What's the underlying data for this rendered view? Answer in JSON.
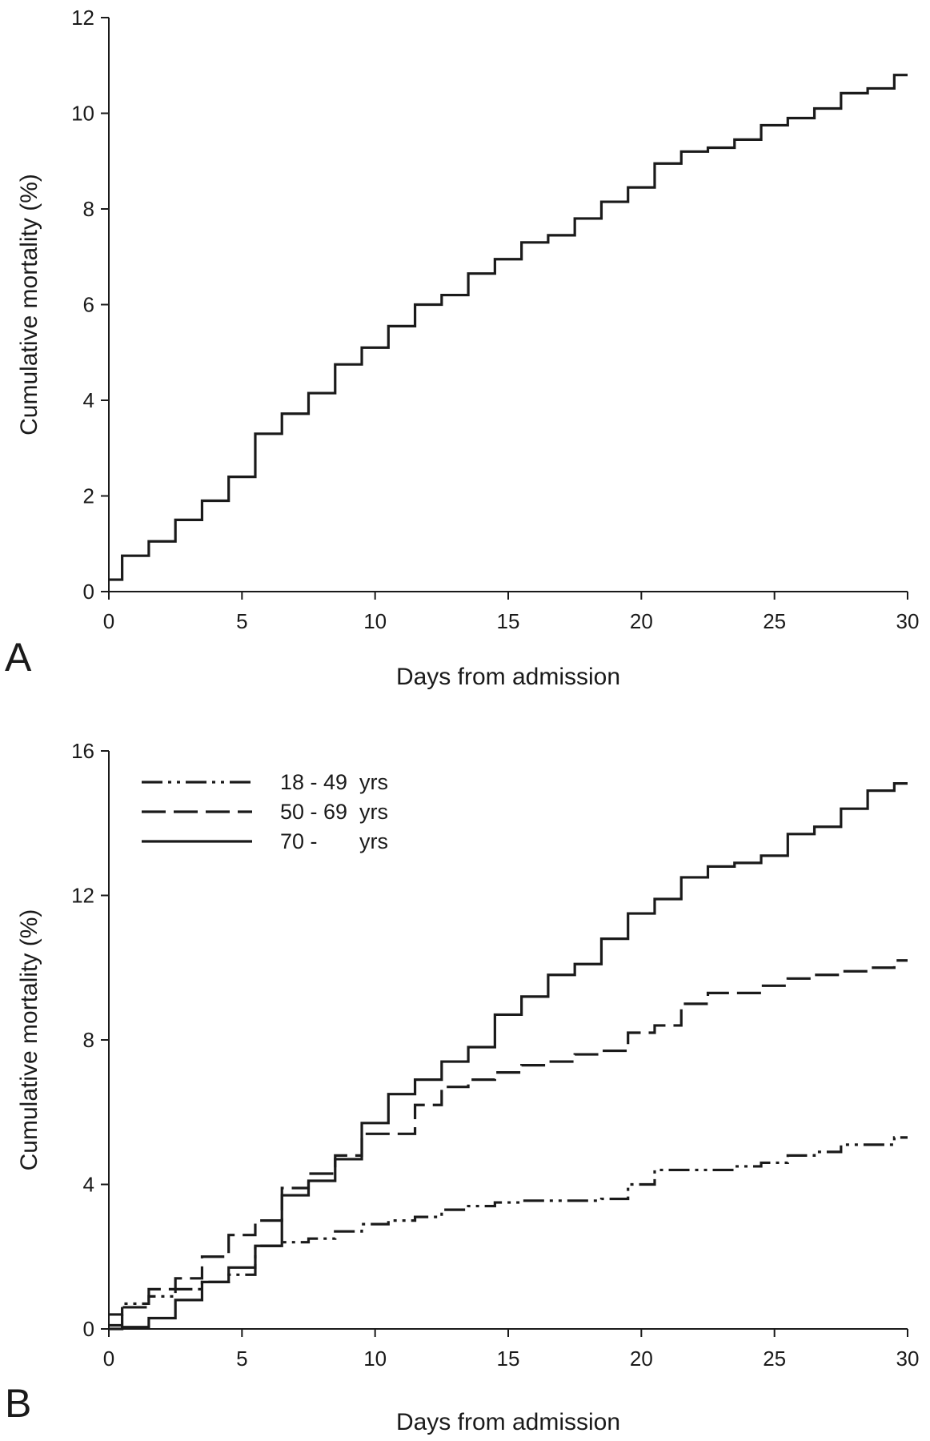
{
  "chart_data": [
    {
      "type": "line",
      "step": true,
      "panel_label": "A",
      "xlabel": "Days from admission",
      "ylabel": "Cumulative mortality (%)",
      "xlim": [
        0,
        30
      ],
      "ylim": [
        0,
        12
      ],
      "xticks": [
        0,
        5,
        10,
        15,
        20,
        25,
        30
      ],
      "yticks": [
        0,
        2,
        4,
        6,
        8,
        10,
        12
      ],
      "grid": false,
      "series": [
        {
          "style": "solid",
          "x": [
            0,
            0.5,
            1.5,
            2.5,
            3.5,
            4.5,
            5.5,
            6.5,
            7.5,
            8.5,
            9.5,
            10.5,
            11.5,
            12.5,
            13.5,
            14.5,
            15.5,
            16.5,
            17.5,
            18.5,
            19.5,
            20.5,
            21.5,
            22.5,
            23.5,
            24.5,
            25.5,
            26.5,
            27.5,
            28.5,
            29.5,
            30
          ],
          "y": [
            0.25,
            0.75,
            1.05,
            1.5,
            1.9,
            2.4,
            3.3,
            3.72,
            4.15,
            4.75,
            5.1,
            5.55,
            6.0,
            6.2,
            6.65,
            6.95,
            7.3,
            7.45,
            7.8,
            8.15,
            8.45,
            8.95,
            9.2,
            9.28,
            9.45,
            9.75,
            9.9,
            10.1,
            10.42,
            10.52,
            10.8,
            10.8
          ]
        }
      ]
    },
    {
      "type": "line",
      "step": true,
      "panel_label": "B",
      "xlabel": "Days from admission",
      "ylabel": "Cumulative mortality (%)",
      "xlim": [
        0,
        30
      ],
      "ylim": [
        0,
        16
      ],
      "xticks": [
        0,
        5,
        10,
        15,
        20,
        25,
        30
      ],
      "yticks": [
        0,
        4,
        8,
        12,
        16
      ],
      "grid": false,
      "legend_position": "top-left",
      "series": [
        {
          "name": "18 - 49  yrs",
          "style": "dash-dot-dot",
          "x": [
            0,
            0.5,
            1.5,
            2.5,
            3.5,
            4.5,
            5.5,
            6.5,
            7.5,
            8.5,
            9.5,
            10.5,
            11.5,
            12.5,
            13.5,
            14.5,
            15.5,
            16.5,
            17.5,
            18.5,
            19.5,
            20.5,
            21.5,
            22.5,
            23.5,
            24.5,
            25.5,
            26.5,
            27.5,
            28.5,
            29.5,
            30
          ],
          "y": [
            0.4,
            0.7,
            0.9,
            1.1,
            1.3,
            1.5,
            2.3,
            2.4,
            2.5,
            2.7,
            2.9,
            3.0,
            3.1,
            3.3,
            3.4,
            3.5,
            3.55,
            3.55,
            3.55,
            3.6,
            4.0,
            4.4,
            4.4,
            4.4,
            4.5,
            4.6,
            4.8,
            4.9,
            5.1,
            5.1,
            5.3,
            5.3
          ]
        },
        {
          "name": "50 - 69  yrs",
          "style": "dashed",
          "x": [
            0,
            0.5,
            1.5,
            2.5,
            3.5,
            4.5,
            5.5,
            6.5,
            7.5,
            8.5,
            9.5,
            10.5,
            11.5,
            12.5,
            13.5,
            14.5,
            15.5,
            16.5,
            17.5,
            18.5,
            19.5,
            20.5,
            21.5,
            22.5,
            23.5,
            24.5,
            25.5,
            26.5,
            27.5,
            28.5,
            29.5,
            30
          ],
          "y": [
            0.1,
            0.6,
            1.1,
            1.4,
            2.0,
            2.6,
            3.0,
            3.9,
            4.3,
            4.8,
            5.4,
            5.4,
            6.2,
            6.7,
            6.9,
            7.1,
            7.3,
            7.4,
            7.6,
            7.7,
            8.2,
            8.4,
            9.0,
            9.3,
            9.3,
            9.5,
            9.7,
            9.8,
            9.9,
            10.0,
            10.2,
            10.2
          ]
        },
        {
          "name": "70 -       yrs",
          "style": "solid",
          "x": [
            0,
            0.5,
            1.5,
            2.5,
            3.5,
            4.5,
            5.5,
            6.5,
            7.5,
            8.5,
            9.5,
            10.5,
            11.5,
            12.5,
            13.5,
            14.5,
            15.5,
            16.5,
            17.5,
            18.5,
            19.5,
            20.5,
            21.5,
            22.5,
            23.5,
            24.5,
            25.5,
            26.5,
            27.5,
            28.5,
            29.5,
            30
          ],
          "y": [
            0,
            0.05,
            0.3,
            0.8,
            1.3,
            1.7,
            2.3,
            3.7,
            4.1,
            4.7,
            5.7,
            6.5,
            6.9,
            7.4,
            7.8,
            8.7,
            9.2,
            9.8,
            10.1,
            10.8,
            11.5,
            11.9,
            12.5,
            12.8,
            12.9,
            13.1,
            13.7,
            13.9,
            14.4,
            14.9,
            15.1,
            15.1
          ]
        }
      ]
    }
  ]
}
